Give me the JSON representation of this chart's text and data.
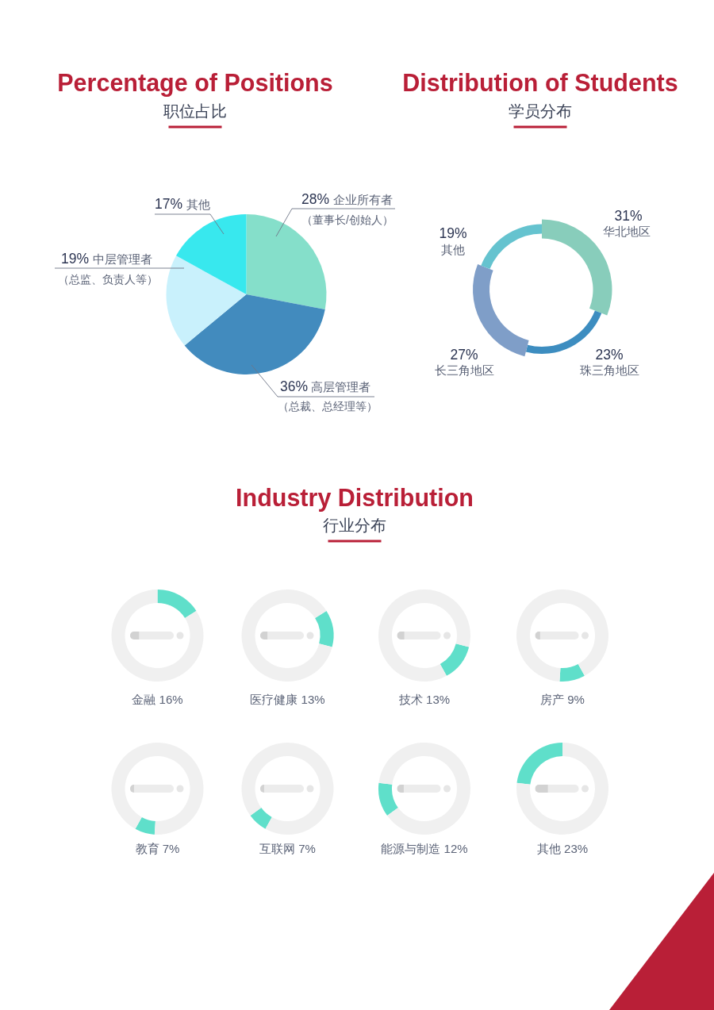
{
  "chart_data": [
    {
      "type": "pie",
      "title": "Percentage of Positions",
      "subtitle": "职位占比",
      "categories": [
        "企业所有者",
        "高层管理者",
        "中层管理者",
        "其他"
      ],
      "values": [
        28,
        36,
        19,
        17
      ],
      "value_labels": [
        "28%",
        "36%",
        "19%",
        "17%"
      ],
      "colors": [
        "#85dfca",
        "#428bbe",
        "#c9f1fc",
        "#38e8ee"
      ],
      "annotations": [
        "（董事长/创始人）",
        "（总裁、总经理等）",
        "（总监、负责人等）"
      ]
    },
    {
      "type": "donut",
      "title": "Distribution of Students",
      "subtitle": "学员分布",
      "categories": [
        "华北地区",
        "珠三角地区",
        "长三角地区",
        "其他"
      ],
      "values": [
        31,
        23,
        27,
        19
      ],
      "value_labels": [
        "31%",
        "23%",
        "27%",
        "19%"
      ],
      "colors": [
        "#88cdbb",
        "#3d8dc0",
        "#7f9ec8",
        "#65c3cf"
      ]
    },
    {
      "type": "other",
      "title": "Industry Distribution",
      "subtitle": "行业分布"
    },
    {
      "type": "donut",
      "title": "金融 16%",
      "categories": [
        null,
        null
      ],
      "values": [
        16,
        84
      ],
      "colors": [
        "#5fdfca",
        "#f0f0f0"
      ]
    },
    {
      "type": "donut",
      "title": "医疗健康 13%",
      "categories": [
        null,
        null
      ],
      "values": [
        13,
        87
      ],
      "colors": [
        "#5fdfca",
        "#f0f0f0"
      ]
    },
    {
      "type": "donut",
      "title": "技术 13%",
      "categories": [
        null,
        null
      ],
      "values": [
        13,
        87
      ],
      "colors": [
        "#5fdfca",
        "#f0f0f0"
      ]
    },
    {
      "type": "donut",
      "title": "房产 9%",
      "categories": [
        null,
        null
      ],
      "values": [
        9,
        91
      ],
      "colors": [
        "#5fdfca",
        "#f0f0f0"
      ]
    },
    {
      "type": "donut",
      "title": "教育 7%",
      "categories": [
        null,
        null
      ],
      "values": [
        7,
        93
      ],
      "colors": [
        "#5fdfca",
        "#f0f0f0"
      ]
    },
    {
      "type": "donut",
      "title": "互联网 7%",
      "categories": [
        null,
        null
      ],
      "values": [
        7,
        93
      ],
      "colors": [
        "#5fdfca",
        "#f0f0f0"
      ]
    },
    {
      "type": "donut",
      "title": "能源与制造 12%",
      "categories": [
        null,
        null
      ],
      "values": [
        12,
        88
      ],
      "colors": [
        "#5fdfca",
        "#f0f0f0"
      ]
    },
    {
      "type": "donut",
      "title": "其他 23%",
      "categories": [
        null,
        null
      ],
      "values": [
        23,
        77
      ],
      "colors": [
        "#5fdfca",
        "#f0f0f0"
      ]
    }
  ]
}
